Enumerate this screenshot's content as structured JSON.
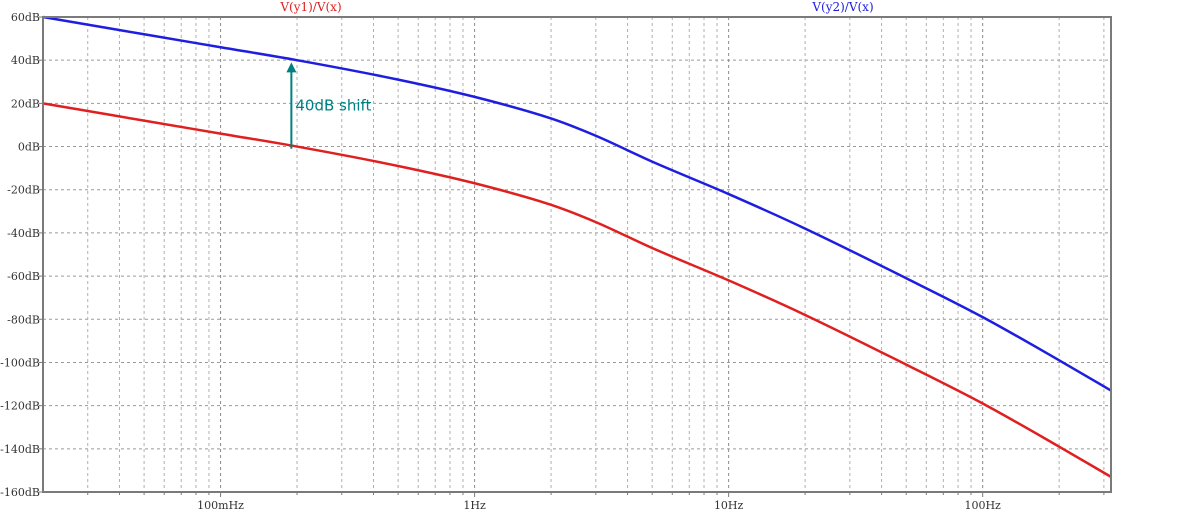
{
  "chart_data": {
    "type": "line",
    "x_scale": "log",
    "xlim": [
      0.02,
      320
    ],
    "ylim": [
      -160,
      60
    ],
    "grid": true,
    "xlabel": "",
    "ylabel": "",
    "y_ticks": [
      {
        "value": 60,
        "label": "60dB"
      },
      {
        "value": 40,
        "label": "40dB"
      },
      {
        "value": 20,
        "label": "20dB"
      },
      {
        "value": 0,
        "label": "0dB"
      },
      {
        "value": -20,
        "label": "-20dB"
      },
      {
        "value": -40,
        "label": "-40dB"
      },
      {
        "value": -60,
        "label": "-60dB"
      },
      {
        "value": -80,
        "label": "-80dB"
      },
      {
        "value": -100,
        "label": "-100dB"
      },
      {
        "value": -120,
        "label": "-120dB"
      },
      {
        "value": -140,
        "label": "-140dB"
      },
      {
        "value": -160,
        "label": "-160dB"
      }
    ],
    "x_ticks": [
      {
        "value": 0.1,
        "label": "100mHz"
      },
      {
        "value": 1,
        "label": "1Hz"
      },
      {
        "value": 10,
        "label": "10Hz"
      },
      {
        "value": 100,
        "label": "100Hz"
      }
    ],
    "x_minor_ticks": [
      0.02,
      0.03,
      0.04,
      0.05,
      0.06,
      0.07,
      0.08,
      0.09,
      0.2,
      0.3,
      0.4,
      0.5,
      0.6,
      0.7,
      0.8,
      0.9,
      2,
      3,
      4,
      5,
      6,
      7,
      8,
      9,
      20,
      30,
      40,
      50,
      60,
      70,
      80,
      90,
      200,
      300
    ],
    "series": [
      {
        "name": "V(y1)/V(x)",
        "color": "#e02020",
        "x": [
          0.02,
          0.05,
          0.1,
          0.2,
          0.5,
          1,
          2,
          3,
          5,
          10,
          20,
          50,
          100,
          200,
          320
        ],
        "y": [
          20,
          12,
          6,
          0,
          -9,
          -17,
          -27,
          -35,
          -47,
          -62,
          -78,
          -101,
          -119,
          -139,
          -153
        ]
      },
      {
        "name": "V(y2)/V(x)",
        "color": "#1e1ee0",
        "x": [
          0.02,
          0.05,
          0.1,
          0.2,
          0.5,
          1,
          2,
          3,
          5,
          10,
          20,
          50,
          100,
          200,
          320
        ],
        "y": [
          60,
          52,
          46,
          40,
          31,
          23,
          13,
          5,
          -7,
          -22,
          -38,
          -61,
          -79,
          -99,
          -113
        ]
      }
    ],
    "annotations": [
      {
        "text": "40dB shift",
        "x": 0.19,
        "y_from": -1,
        "y_to": 39,
        "color": "#008080"
      }
    ]
  }
}
